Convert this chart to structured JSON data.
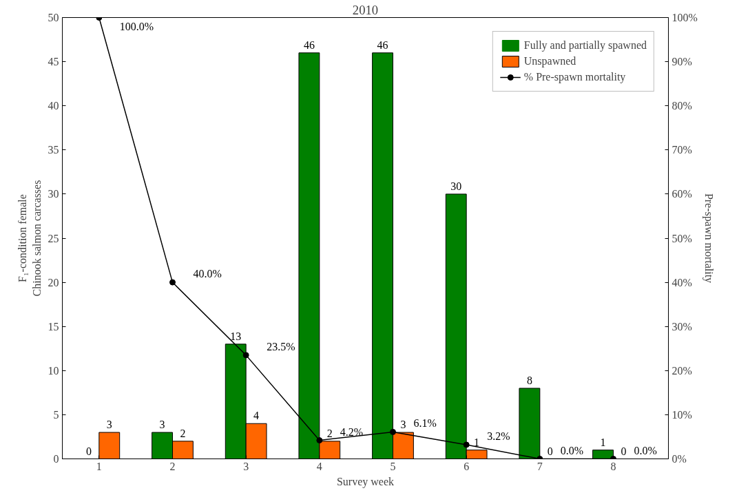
{
  "chart_data": {
    "type": "bar",
    "title": "2010",
    "xlabel": "Survey week",
    "ylabel": "F₁-condition female\nChinook salmon carcasses",
    "y2label": "Pre-spawn mortality",
    "categories": [
      "1",
      "2",
      "3",
      "4",
      "5",
      "6",
      "7",
      "8"
    ],
    "series": [
      {
        "name": "Fully and partially spawned",
        "color": "#008000",
        "values": [
          0,
          3,
          13,
          46,
          46,
          30,
          8,
          1
        ],
        "value_labels": [
          "0",
          "3",
          "13",
          "46",
          "46",
          "30",
          "8",
          "1"
        ]
      },
      {
        "name": "Unspawned",
        "color": "#ff6600",
        "values": [
          3,
          2,
          4,
          2,
          3,
          1,
          0,
          0
        ],
        "value_labels": [
          "3",
          "2",
          "4",
          "2",
          "3",
          "1",
          "0",
          "0"
        ]
      },
      {
        "name": "% Pre-spawn mortality",
        "type": "line",
        "axis": "y2",
        "color": "#000000",
        "marker": "circle",
        "values": [
          100,
          40,
          23.5,
          4.2,
          6.1,
          3.2,
          0,
          0
        ],
        "value_labels": [
          "100.0%",
          "40.0%",
          "23.5%",
          "4.2%",
          "6.1%",
          "3.2%",
          "0.0%",
          "0.0%"
        ]
      }
    ],
    "ylim": [
      0,
      50
    ],
    "yticks": [
      0,
      5,
      10,
      15,
      20,
      25,
      30,
      35,
      40,
      45,
      50
    ],
    "y2lim": [
      0,
      100
    ],
    "y2ticks": [
      {
        "value": 0,
        "label": "0%"
      },
      {
        "value": 10,
        "label": "10%"
      },
      {
        "value": 20,
        "label": "20%"
      },
      {
        "value": 30,
        "label": "30%"
      },
      {
        "value": 40,
        "label": "40%"
      },
      {
        "value": 50,
        "label": "50%"
      },
      {
        "value": 60,
        "label": "60%"
      },
      {
        "value": 70,
        "label": "70%"
      },
      {
        "value": 80,
        "label": "80%"
      },
      {
        "value": 90,
        "label": "90%"
      },
      {
        "value": 100,
        "label": "100%"
      }
    ],
    "grid": false,
    "legend": "top right",
    "line_style": "solid"
  }
}
